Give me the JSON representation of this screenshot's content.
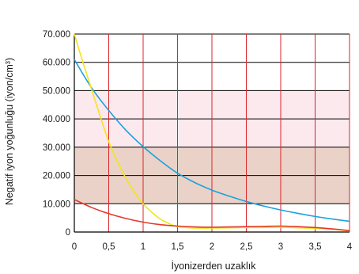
{
  "chart_data": {
    "type": "line",
    "xlabel": "İyonizerden uzaklık",
    "ylabel": "Negatif iyon yoğunluğu (iyon/cm³)",
    "xlim": [
      0,
      4
    ],
    "ylim": [
      0,
      70000
    ],
    "x_ticks": [
      0,
      0.5,
      1,
      1.5,
      2,
      2.5,
      3,
      3.5,
      4
    ],
    "x_tick_labels": [
      "0",
      "0,5",
      "1",
      "1,5",
      "2",
      "2,5",
      "3",
      "3,5",
      "4"
    ],
    "y_ticks": [
      0,
      10000,
      20000,
      30000,
      40000,
      50000,
      60000,
      70000
    ],
    "y_tick_labels": [
      "0",
      "10.000",
      "20.000",
      "30.000",
      "40.000",
      "50.000",
      "60.000",
      "70.000"
    ],
    "grid": {
      "horizontal": true,
      "vertical": true,
      "vertical_color": "#d9262c",
      "horizontal_color": "#000000"
    },
    "bands": [
      {
        "y0": 10000,
        "y1": 30000,
        "color": "#ead2c8"
      },
      {
        "y0": 30000,
        "y1": 50000,
        "color": "#fbe9ee"
      }
    ],
    "series": [
      {
        "color": "#1ba1dc",
        "x": [
          0,
          0.25,
          0.5,
          0.75,
          1,
          1.25,
          1.5,
          1.75,
          2,
          2.25,
          2.5,
          2.75,
          3,
          3.25,
          3.5,
          3.75,
          4
        ],
        "values": [
          61000,
          51000,
          43000,
          36000,
          30200,
          25200,
          20800,
          17500,
          14800,
          12700,
          10800,
          9200,
          7800,
          6600,
          5500,
          4600,
          3800
        ]
      },
      {
        "color": "#f4e31c",
        "x": [
          0,
          0.125,
          0.25,
          0.375,
          0.5,
          0.625,
          0.75,
          0.875,
          1,
          1.125,
          1.25,
          1.375,
          1.5,
          1.75,
          2,
          2.25,
          2.5,
          2.75,
          3,
          3.25,
          3.5,
          3.75,
          4
        ],
        "values": [
          70000,
          60000,
          50500,
          41000,
          32000,
          25000,
          19000,
          14000,
          10000,
          7000,
          4600,
          3000,
          1900,
          1400,
          1400,
          1500,
          1600,
          1600,
          1700,
          1500,
          1300,
          1000,
          400
        ]
      },
      {
        "color": "#e23b2a",
        "x": [
          0,
          0.25,
          0.5,
          0.75,
          1,
          1.25,
          1.5,
          1.75,
          2,
          2.25,
          2.5,
          2.75,
          3,
          3.25,
          3.5,
          3.75,
          4
        ],
        "values": [
          11500,
          8700,
          6500,
          4800,
          3500,
          2600,
          2100,
          1800,
          1700,
          1800,
          1900,
          2000,
          2100,
          1900,
          1600,
          1100,
          500
        ]
      }
    ]
  }
}
